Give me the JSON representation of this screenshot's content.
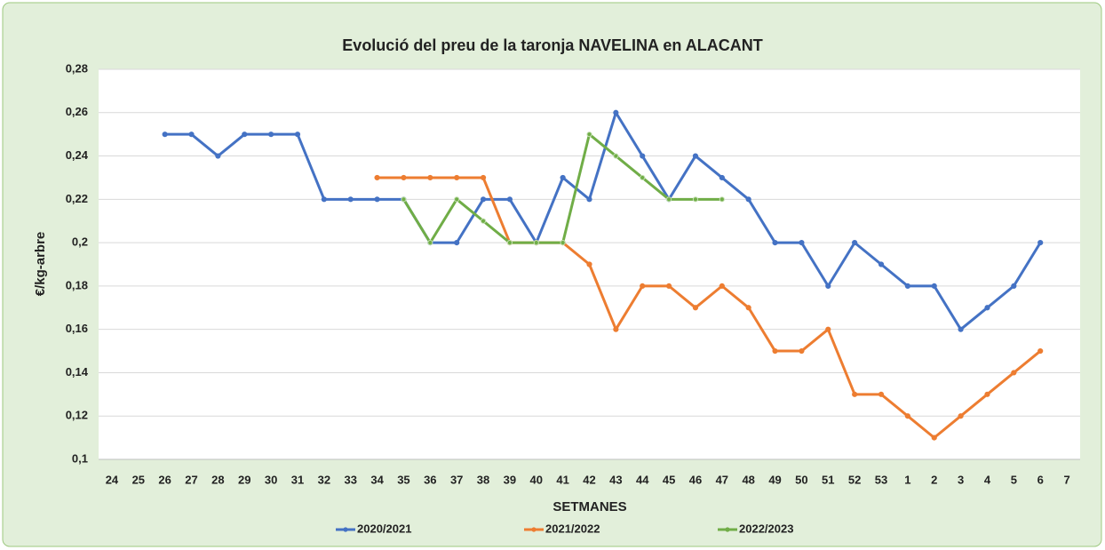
{
  "chart_data": {
    "type": "line",
    "title": "Evolució del preu de la  taronja NAVELINA en ALACANT",
    "x_label": "SETMANES",
    "y_label": "€/kg-arbre",
    "categories": [
      "24",
      "25",
      "26",
      "27",
      "28",
      "29",
      "30",
      "31",
      "32",
      "33",
      "34",
      "35",
      "36",
      "37",
      "38",
      "39",
      "40",
      "41",
      "42",
      "43",
      "44",
      "45",
      "46",
      "47",
      "48",
      "49",
      "50",
      "51",
      "52",
      "53",
      "1",
      "2",
      "3",
      "4",
      "5",
      "6",
      "7"
    ],
    "series": [
      {
        "name": "2020/2021",
        "color": "#4472c4",
        "values": [
          null,
          null,
          0.25,
          0.25,
          0.24,
          0.25,
          0.25,
          0.25,
          0.22,
          0.22,
          0.22,
          0.22,
          0.2,
          0.2,
          0.22,
          0.22,
          0.2,
          0.23,
          0.22,
          0.26,
          0.24,
          0.22,
          0.24,
          0.23,
          0.22,
          0.2,
          0.2,
          0.18,
          0.2,
          0.19,
          0.18,
          0.18,
          0.16,
          0.17,
          0.18,
          0.2,
          null
        ]
      },
      {
        "name": "2021/2022",
        "color": "#ed7d31",
        "values": [
          null,
          null,
          null,
          null,
          null,
          null,
          null,
          null,
          null,
          null,
          0.23,
          0.23,
          0.23,
          0.23,
          0.23,
          0.2,
          0.2,
          0.2,
          0.19,
          0.16,
          0.18,
          0.18,
          0.17,
          0.18,
          0.17,
          0.15,
          0.15,
          0.16,
          0.13,
          0.13,
          0.12,
          0.11,
          0.12,
          0.13,
          0.14,
          0.15,
          null
        ]
      },
      {
        "name": "2022/2023",
        "color": "#70ad47",
        "values": [
          null,
          null,
          null,
          null,
          null,
          null,
          null,
          null,
          null,
          null,
          null,
          0.22,
          0.2,
          0.22,
          0.21,
          0.2,
          0.2,
          0.2,
          0.25,
          0.24,
          0.23,
          0.22,
          0.22,
          0.22,
          null,
          null,
          null,
          null,
          null,
          null,
          null,
          null,
          null,
          null,
          null,
          null,
          null
        ]
      }
    ],
    "ylim": [
      0.1,
      0.28
    ],
    "yticks": [
      {
        "value": 0.1,
        "label": "0,1"
      },
      {
        "value": 0.12,
        "label": "0,12"
      },
      {
        "value": 0.14,
        "label": "0,14"
      },
      {
        "value": 0.16,
        "label": "0,16"
      },
      {
        "value": 0.18,
        "label": "0,18"
      },
      {
        "value": 0.2,
        "label": "0,2"
      },
      {
        "value": 0.22,
        "label": "0,22"
      },
      {
        "value": 0.24,
        "label": "0,24"
      },
      {
        "value": 0.26,
        "label": "0,26"
      },
      {
        "value": 0.28,
        "label": "0,28"
      }
    ],
    "grid": true,
    "legend": "bottom"
  }
}
